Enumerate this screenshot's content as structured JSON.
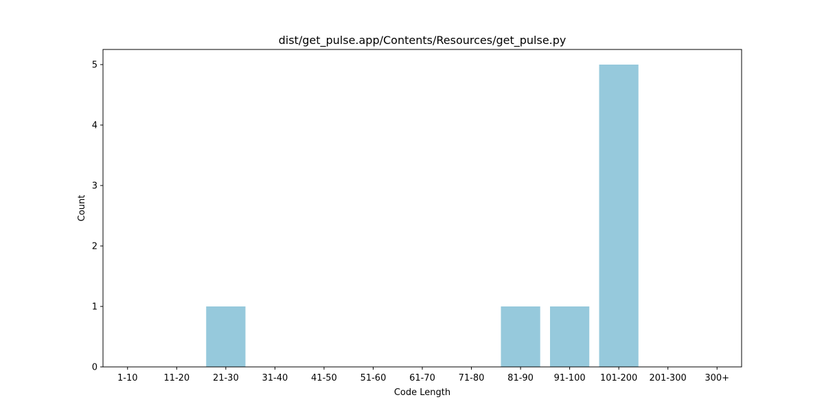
{
  "chart_data": {
    "type": "bar",
    "title": "dist/get_pulse.app/Contents/Resources/get_pulse.py",
    "xlabel": "Code Length",
    "ylabel": "Count",
    "categories": [
      "1-10",
      "11-20",
      "21-30",
      "31-40",
      "41-50",
      "51-60",
      "61-70",
      "71-80",
      "81-90",
      "91-100",
      "101-200",
      "201-300",
      "300+"
    ],
    "values": [
      0,
      0,
      1,
      0,
      0,
      0,
      0,
      0,
      1,
      1,
      5,
      0,
      0
    ],
    "yticks": [
      0,
      1,
      2,
      3,
      4,
      5
    ],
    "ylim": [
      0,
      5.25
    ],
    "grid": false,
    "bar_color": "#96c9dc"
  }
}
